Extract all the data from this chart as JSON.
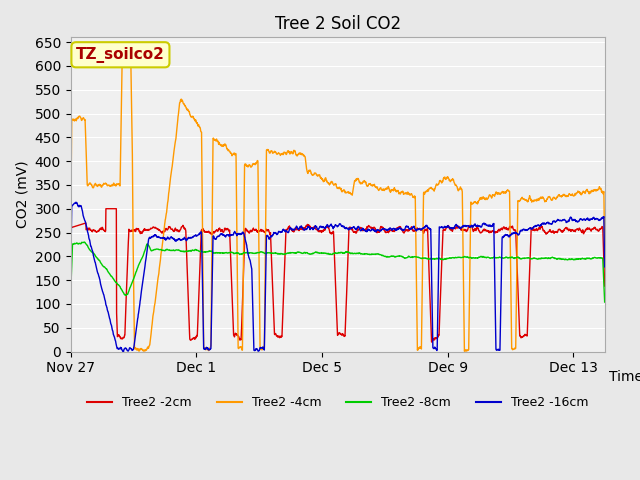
{
  "title": "Tree 2 Soil CO2",
  "ylabel": "CO2 (mV)",
  "xlabel": "Time",
  "annotation_text": "TZ_soilco2",
  "annotation_bg": "#ffffcc",
  "annotation_border": "#cccc00",
  "annotation_color": "#aa0000",
  "ylim": [
    0,
    660
  ],
  "yticks": [
    0,
    50,
    100,
    150,
    200,
    250,
    300,
    350,
    400,
    450,
    500,
    550,
    600,
    650
  ],
  "bg_color": "#e8e8e8",
  "plot_bg": "#f0f0f0",
  "grid_color": "#ffffff",
  "series": {
    "red": {
      "label": "Tree2 -2cm",
      "color": "#dd0000"
    },
    "orange": {
      "label": "Tree2 -4cm",
      "color": "#ff9900"
    },
    "green": {
      "label": "Tree2 -8cm",
      "color": "#00cc00"
    },
    "blue": {
      "label": "Tree2 -16cm",
      "color": "#0000cc"
    }
  },
  "xtick_labels": [
    "Nov 27",
    "Dec 1",
    "Dec 5",
    "Dec 9",
    "Dec 13"
  ],
  "xtick_positions": [
    0,
    4,
    8,
    12,
    16
  ]
}
